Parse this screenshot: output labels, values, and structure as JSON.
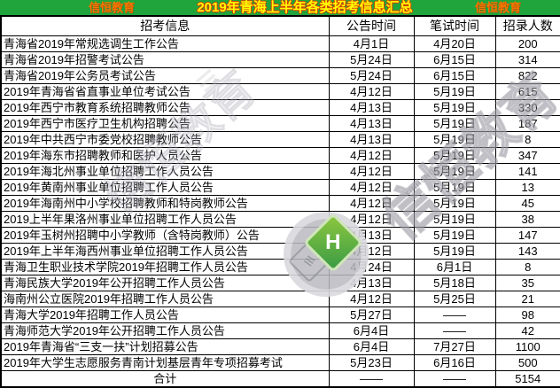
{
  "banner": {
    "left_brand": "信恒教育",
    "title": "2019年青海上半年各类招考信息汇总",
    "right_brand": "信恒教育",
    "colors": {
      "banner_bg": "#1fa53c",
      "brand_text": "#ee7a00",
      "title_text": "#ffff00",
      "title_outline": "#e03c00"
    }
  },
  "table": {
    "headers": [
      "招考信息",
      "公告时间",
      "笔试时间",
      "招录人数"
    ],
    "rows": [
      [
        "青海省2019年常规选调生工作公告",
        "4月1日",
        "4月20日",
        "200"
      ],
      [
        "青海省2019年招警考试公告",
        "5月24日",
        "6月15日",
        "314"
      ],
      [
        "青海省2019年公务员考试公告",
        "5月24日",
        "6月15日",
        "822"
      ],
      [
        "2019年青海省省直事业单位考试公告",
        "4月12日",
        "5月19日",
        "615"
      ],
      [
        "2019年西宁市教育系统招聘教师公告",
        "4月13日",
        "5月19日",
        "330"
      ],
      [
        "2019年西宁市医疗卫生机构招聘公告",
        "4月13日",
        "5月19日",
        "187"
      ],
      [
        "2019年中共西宁市委党校招聘教师公告",
        "4月13日",
        "5月19日",
        "8"
      ],
      [
        "2019年海东市招聘教师和医护人员公告",
        "4月12日",
        "5月19日",
        "347"
      ],
      [
        "2019年海北州事业单位招聘工作人员公告",
        "4月12日",
        "5月19日",
        "141"
      ],
      [
        "2019年黄南州事业单位招聘工作人员公告",
        "4月12日",
        "5月19日",
        "13"
      ],
      [
        "2019年海南州中小学校招聘教师和特岗教师公告",
        "4月12日",
        "5月19日",
        "45"
      ],
      [
        "2019上半年果洛州事业单位招聘工作人员公告",
        "4月12日",
        "5月19日",
        "38"
      ],
      [
        "2019年玉树州招聘中小学教师（含特岗教师）公告",
        "4月13日",
        "5月19日",
        "147"
      ],
      [
        "2019年上半年海西州事业单位招聘工作人员公告",
        "4月12日",
        "5月19日",
        "143"
      ],
      [
        "青海卫生职业技术学院2019年招聘工作人员公告",
        "4月24日",
        "6月1日",
        "8"
      ],
      [
        "青海民族大学2019年公开招聘工作人员公告",
        "4月13日",
        "5月18日",
        "35"
      ],
      [
        "海南州公立医院2019年招聘工作人员公告",
        "4月12日",
        "5月25日",
        "21"
      ],
      [
        "青海大学2019年招聘工作人员公告",
        "5月27日",
        "——",
        "98"
      ],
      [
        "青海师范大学2019年公开招聘工作人员公告",
        "6月4日",
        "——",
        "42"
      ],
      [
        "2019年青海省“三支一扶”计划招募公告",
        "6月4日",
        "7月27日",
        "1100"
      ],
      [
        "2019年大学生志愿服务青南计划基层青年专项招募考试",
        "5月23日",
        "6月16日",
        "500"
      ],
      [
        "合计",
        "——",
        "——",
        "5154"
      ]
    ]
  },
  "watermark": {
    "brand_text": "信恒教育",
    "brand_text_faint": "信恒教育",
    "small_text": "XINHENGJIAOYU",
    "logo_letter": "H",
    "stripes_glyph": "≡"
  }
}
